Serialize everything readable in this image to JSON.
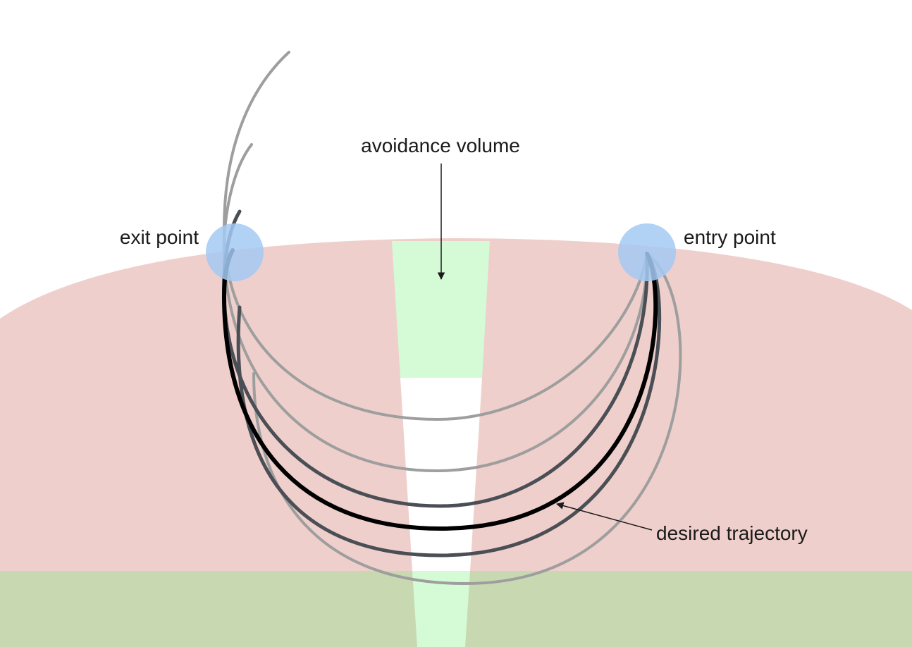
{
  "labels": {
    "avoidance_volume": "avoidance volume",
    "exit_point": "exit point",
    "entry_point": "entry point",
    "desired_trajectory": "desired trajectory"
  },
  "colors": {
    "background": "#ffffff",
    "tissue": "#efcfcb",
    "base": "#c8d9b1",
    "avoidance": "#d4fbd6",
    "avoidance_gap": "#ffffff",
    "point_marker": "#a3c9f3",
    "trajectory_light": "#9e9e9e",
    "trajectory_dark": "#4a4e55",
    "trajectory_desired": "#000000"
  },
  "icons": {
    "exit_point": "circle-marker",
    "entry_point": "circle-marker",
    "pointer": "arrow"
  }
}
